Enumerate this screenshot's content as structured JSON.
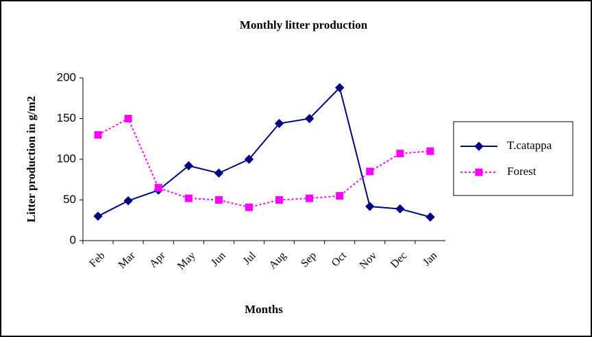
{
  "chart_data": {
    "type": "line",
    "title": "Monthly litter production",
    "x_label": "Months",
    "y_label": "Litter production in g/m2",
    "categories": [
      "Feb",
      "Mar",
      "Apr",
      "May",
      "Jun",
      "Jul",
      "Aug",
      "Sep",
      "Oct",
      "Nov",
      "Dec",
      "Jan"
    ],
    "series": [
      {
        "name": "T.catappa",
        "color": "#000080",
        "marker": "diamond",
        "dash": "solid",
        "values": [
          30,
          49,
          62,
          92,
          83,
          100,
          144,
          150,
          188,
          42,
          39,
          29
        ]
      },
      {
        "name": "Forest",
        "color": "#ff00ff",
        "marker": "square",
        "dash": "dotted",
        "values": [
          130,
          150,
          65,
          52,
          50,
          41,
          50,
          52,
          55,
          85,
          107,
          110
        ]
      }
    ],
    "ylim": [
      0,
      200
    ],
    "yticks": [
      0,
      50,
      100,
      150,
      200
    ],
    "grid": false,
    "legend": "right"
  }
}
